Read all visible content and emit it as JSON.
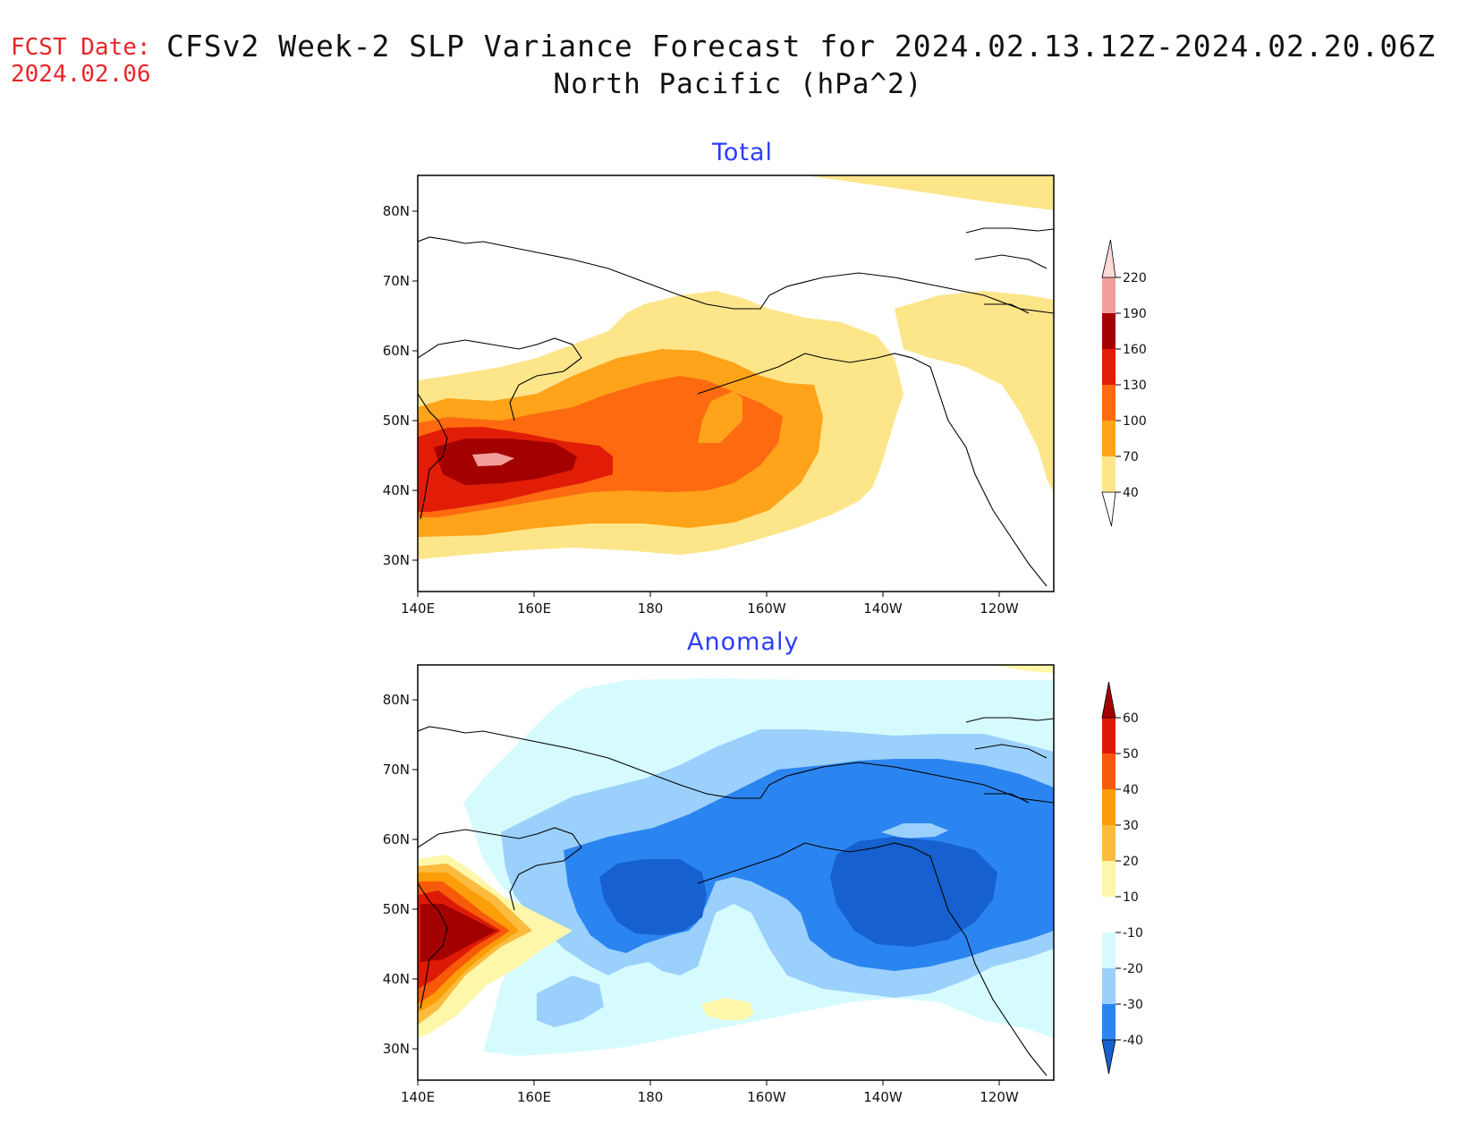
{
  "header": {
    "fcst_label": "FCST Date:",
    "fcst_date": "2024.02.06",
    "title_line1": "CFSv2 Week-2 SLP Variance Forecast for 2024.02.13.12Z-2024.02.20.06Z",
    "title_line2": "North Pacific (hPa^2)"
  },
  "map_axes": {
    "lon_labels": [
      "140E",
      "160E",
      "180",
      "160W",
      "140W",
      "120W"
    ],
    "lat_labels": [
      "80N",
      "70N",
      "60N",
      "50N",
      "40N",
      "30N"
    ]
  },
  "panels": [
    {
      "title": "Total",
      "colorbar": {
        "levels": [
          "40",
          "70",
          "100",
          "130",
          "160",
          "190",
          "220"
        ],
        "colors": [
          "#fde58a",
          "#fea31a",
          "#fd6a10",
          "#e11d08",
          "#a30000",
          "#f29f9c",
          "#fdd9d8"
        ]
      }
    },
    {
      "title": "Anomaly",
      "colorbar": {
        "levels": [
          "-40",
          "-30",
          "-20",
          "-10",
          "10",
          "20",
          "30",
          "40",
          "50",
          "60"
        ],
        "colors": [
          "#1660cf",
          "#2b85f0",
          "#9ad0fb",
          "#d6fbff",
          "#ffffff",
          "#fef6a8",
          "#fbbb3e",
          "#fb9e0a",
          "#f75a08",
          "#dd1a06",
          "#a30000"
        ]
      }
    }
  ],
  "colors": {
    "title_accent": "#2d3cff",
    "fcst_accent": "#e8262a"
  }
}
